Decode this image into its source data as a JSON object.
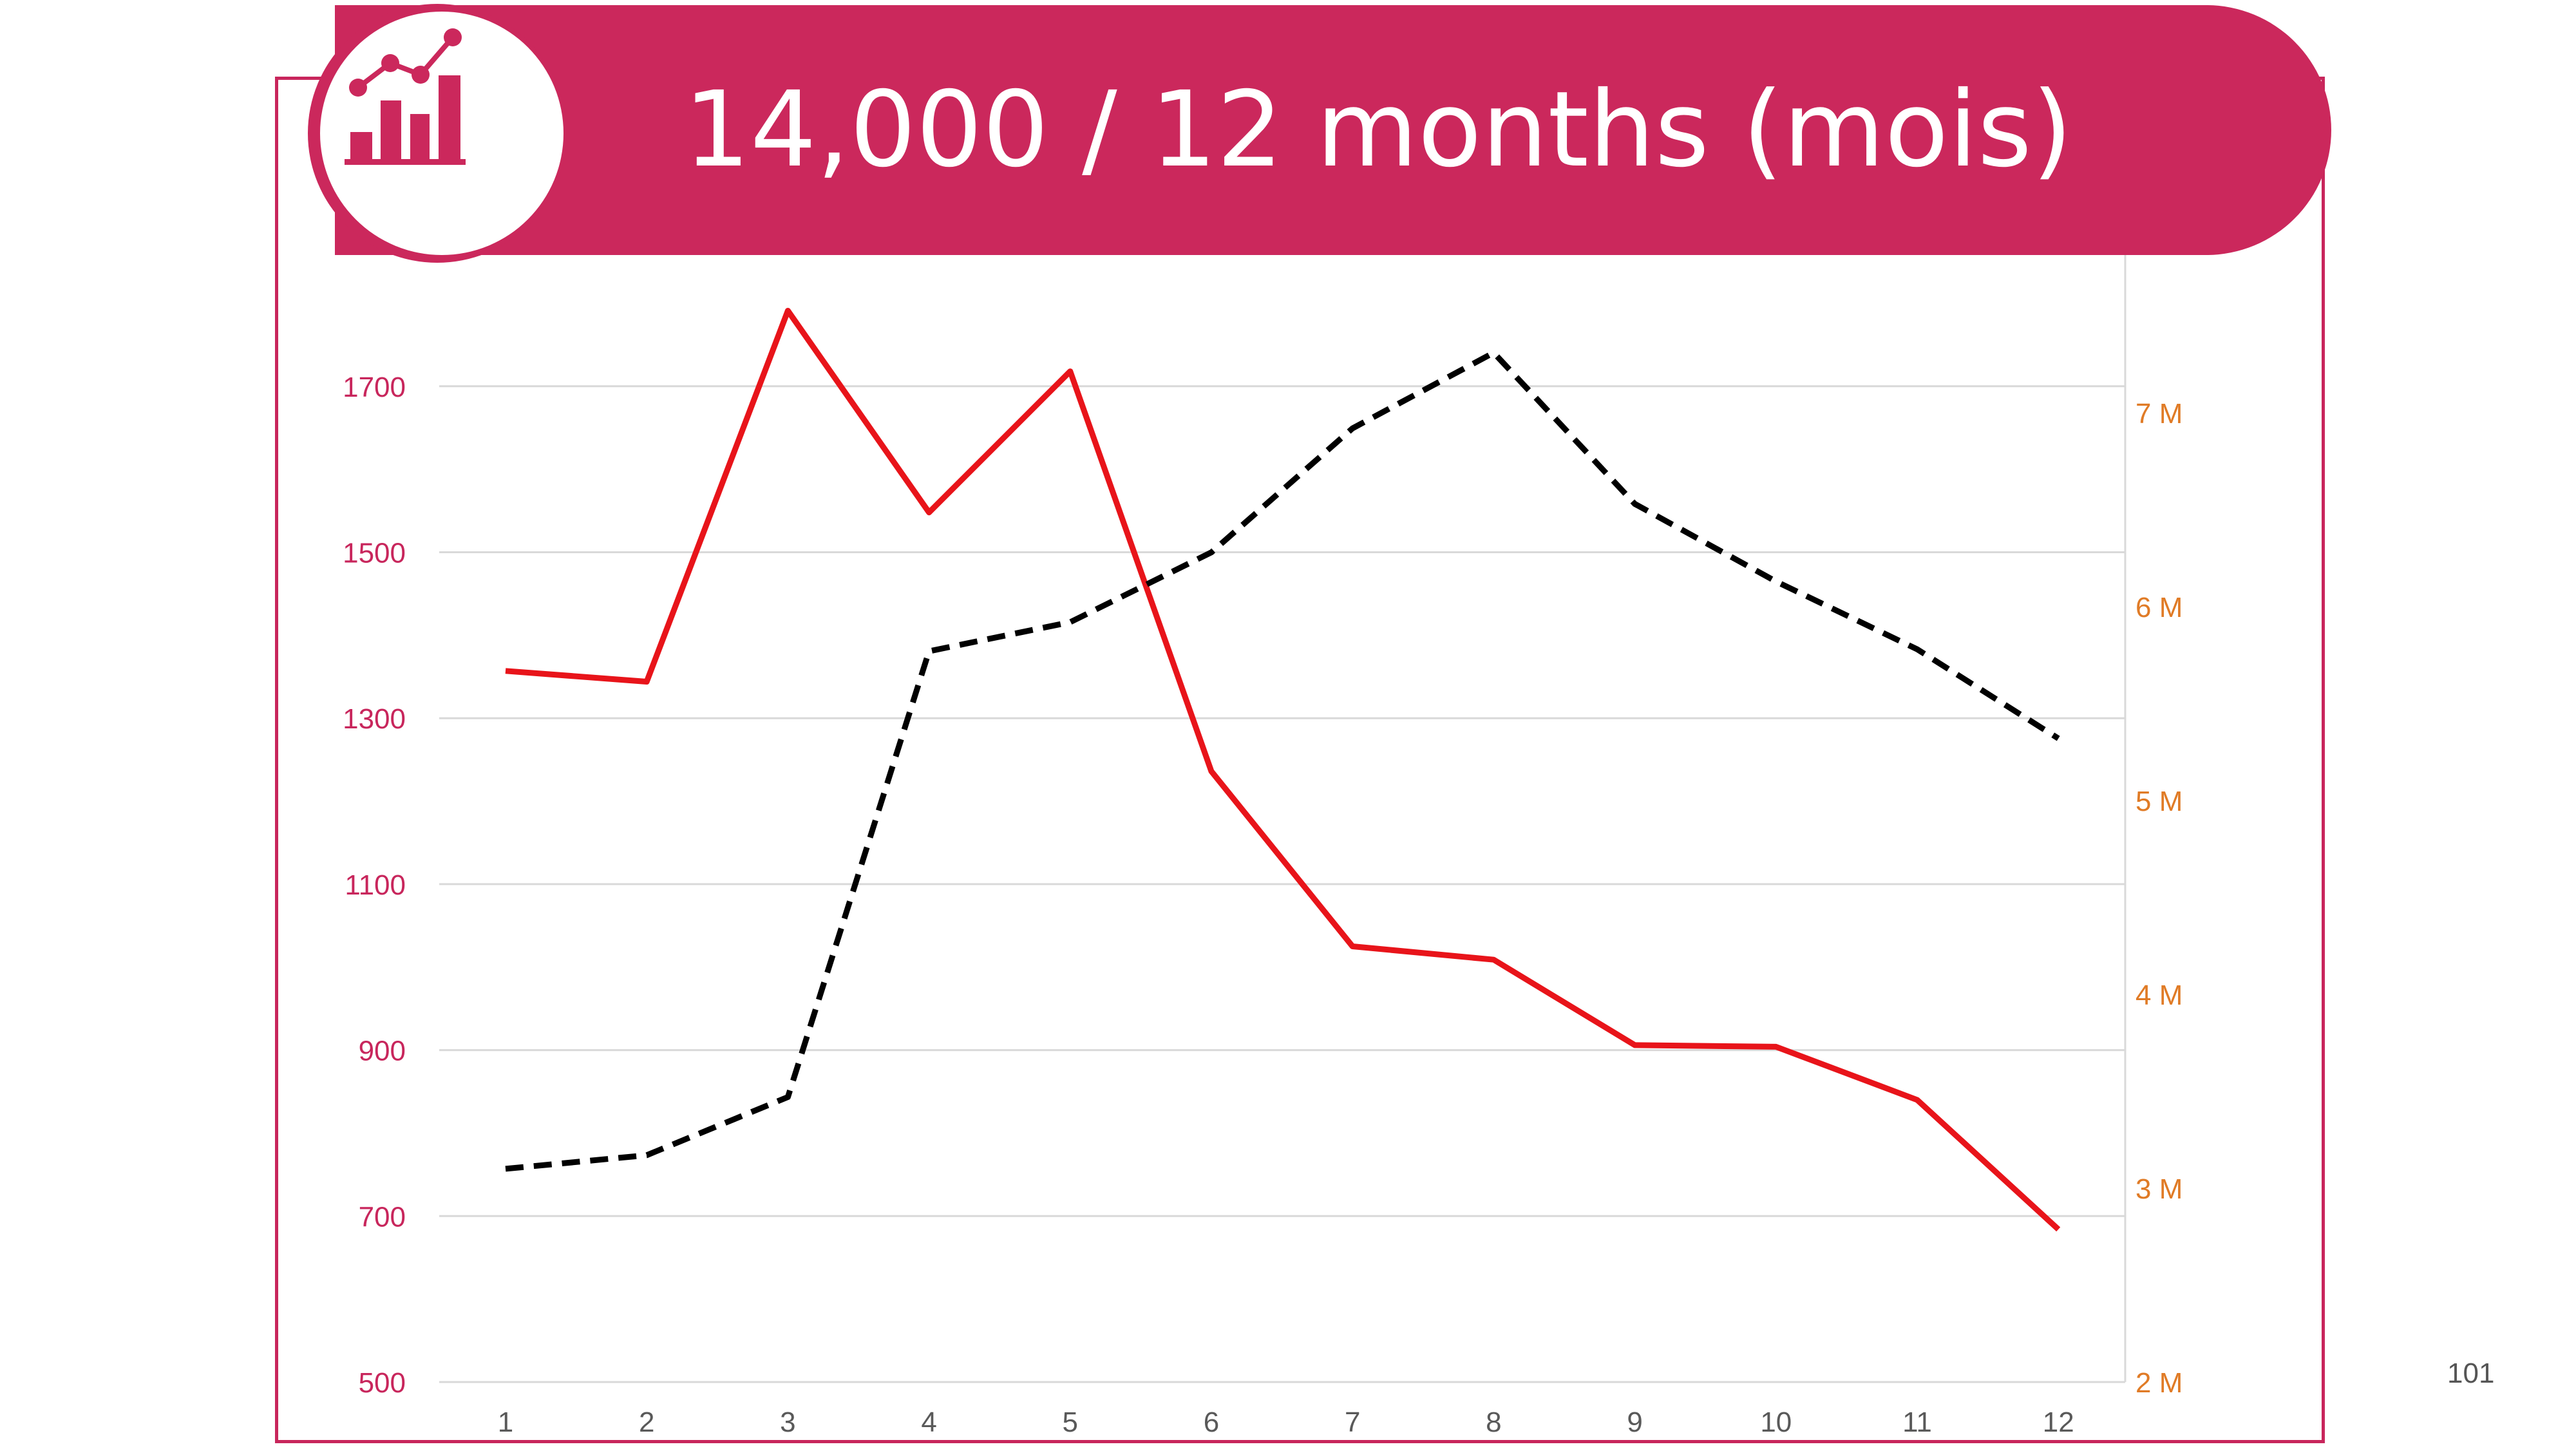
{
  "title": "14,000 / 12 months (mois)",
  "page_number": "101",
  "logo_icon": "bar-chart-with-trend-line-icon",
  "colors": {
    "accent": "#cb285c",
    "left_axis": "#c8265c",
    "right_axis": "#e07b26",
    "series_solid": "#e8141a",
    "series_dashed": "#000000",
    "grid": "#d9d9d9",
    "x_tick": "#595959"
  },
  "chart_data": {
    "type": "line",
    "x": [
      "1",
      "2",
      "3",
      "4",
      "5",
      "6",
      "7",
      "8",
      "9",
      "10",
      "11",
      "12"
    ],
    "y_left": {
      "ticks": [
        "500",
        "700",
        "900",
        "1100",
        "1300",
        "1500",
        "1700"
      ],
      "range": [
        500,
        1900
      ]
    },
    "y_right": {
      "ticks": [
        "2 M",
        "3 M",
        "4 M",
        "5 M",
        "6 M",
        "7 M"
      ],
      "range": [
        2000000,
        8000000
      ]
    },
    "series": [
      {
        "axis": "left",
        "style": "solid",
        "values": [
          1357,
          1344,
          1791,
          1548,
          1718,
          1236,
          1025,
          1009,
          906,
          904,
          840,
          684
        ]
      },
      {
        "axis": "right",
        "style": "dashed",
        "values": [
          3100000,
          3170000,
          3470000,
          5770000,
          5920000,
          6280000,
          6920000,
          7310000,
          6530000,
          6130000,
          5780000,
          5320000
        ]
      }
    ],
    "grid": true,
    "legend": "none"
  }
}
